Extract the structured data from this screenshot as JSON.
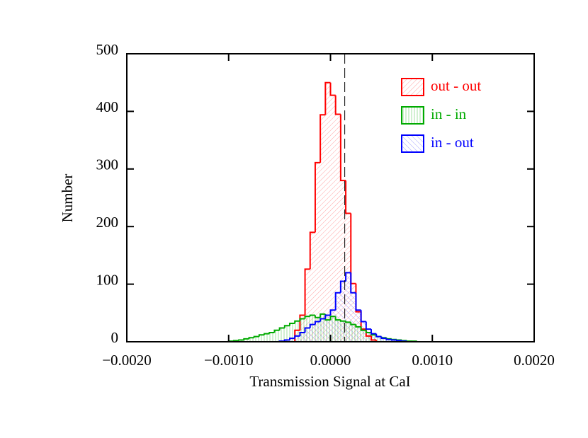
{
  "chart_data": {
    "type": "histogram",
    "xlabel": "Transmission Signal at CaI",
    "ylabel": "Number",
    "bins": [
      -0.001,
      -0.00095,
      -0.0009,
      -0.00085,
      -0.0008,
      -0.00075,
      -0.0007,
      -0.00065,
      -0.0006,
      -0.00055,
      -0.0005,
      -0.00045,
      -0.0004,
      -0.00035,
      -0.0003,
      -0.00025,
      -0.0002,
      -0.00015,
      -0.0001,
      -5e-05,
      0,
      5e-05,
      0.0001,
      0.00015,
      0.0002,
      0.00025,
      0.0003,
      0.00035,
      0.0004,
      0.00045,
      0.0005,
      0.00055,
      0.0006,
      0.00065,
      0.0007,
      0.00075,
      0.0008,
      0.00085,
      0.0009,
      0.00095,
      0.001
    ],
    "series": [
      {
        "name": "out - out",
        "color": "#ff0000",
        "hatch": "diagonal",
        "values": [
          0,
          0,
          0,
          0,
          0,
          0,
          0,
          0,
          0,
          0,
          0,
          0,
          0,
          20,
          46,
          126,
          190,
          311,
          394,
          450,
          428,
          395,
          280,
          223,
          101,
          52,
          22,
          10,
          3,
          0,
          0,
          0,
          0,
          0,
          0,
          0,
          0,
          0,
          0,
          0
        ]
      },
      {
        "name": "in - in",
        "color": "#00aa00",
        "hatch": "vertical",
        "values": [
          1,
          2,
          3,
          5,
          7,
          9,
          12,
          14,
          16,
          20,
          24,
          28,
          32,
          36,
          40,
          44,
          46,
          42,
          48,
          38,
          44,
          38,
          36,
          34,
          30,
          26,
          20,
          16,
          12,
          9,
          7,
          5,
          4,
          3,
          2,
          1,
          1,
          0,
          0,
          0
        ]
      },
      {
        "name": "in - out",
        "color": "#0000ff",
        "hatch": "antidiagonal",
        "values": [
          0,
          0,
          0,
          0,
          0,
          0,
          0,
          0,
          0,
          0,
          1,
          3,
          6,
          10,
          16,
          24,
          30,
          35,
          40,
          46,
          55,
          85,
          105,
          120,
          85,
          55,
          35,
          22,
          14,
          9,
          6,
          4,
          3,
          2,
          1,
          0,
          0,
          0,
          0,
          0
        ]
      }
    ],
    "ref_line_x": 0.00014,
    "xlim": [
      -0.002,
      0.002
    ],
    "xticks": [
      {
        "value": -0.002,
        "label": "−0.0020"
      },
      {
        "value": -0.001,
        "label": "−0.0010"
      },
      {
        "value": 0,
        "label": "0.0000"
      },
      {
        "value": 0.001,
        "label": "0.0010"
      },
      {
        "value": 0.002,
        "label": "0.0020"
      }
    ],
    "ylim": [
      0,
      500
    ],
    "yticks": [
      0,
      100,
      200,
      300,
      400,
      500
    ],
    "legend": "upper-right"
  }
}
